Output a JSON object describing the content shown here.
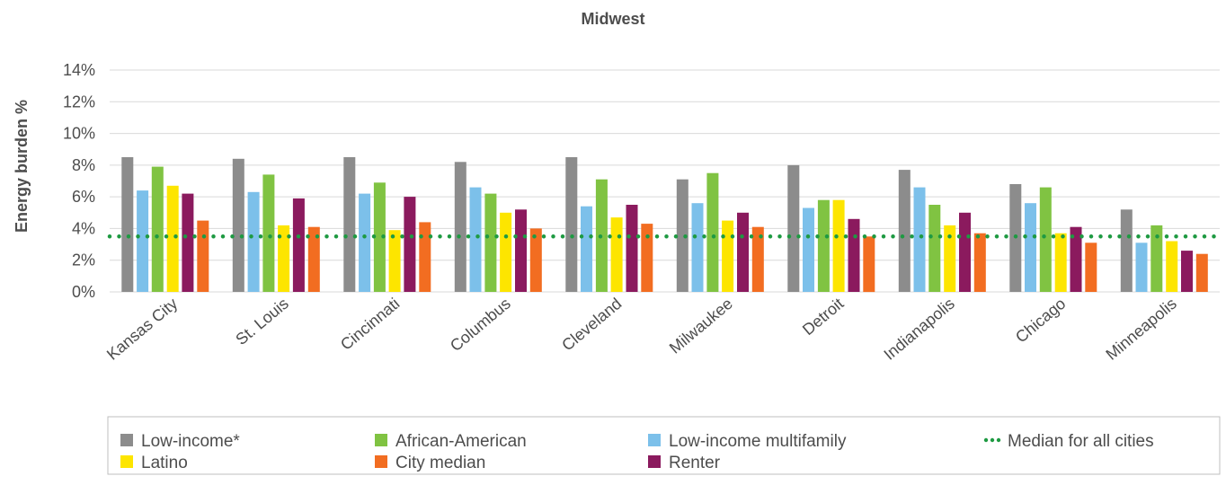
{
  "chart_data": {
    "type": "bar",
    "title": "Midwest",
    "xlabel": "",
    "ylabel": "Energy burden %",
    "ylim": [
      0,
      14
    ],
    "yticks": [
      "0%",
      "2%",
      "4%",
      "6%",
      "8%",
      "10%",
      "12%",
      "14%"
    ],
    "grid": true,
    "legend_position": "bottom",
    "categories": [
      "Kansas City",
      "St. Louis",
      "Cincinnati",
      "Columbus",
      "Cleveland",
      "Milwaukee",
      "Detroit",
      "Indianapolis",
      "Chicago",
      "Minneapolis"
    ],
    "series": [
      {
        "name": "Low-income*",
        "color": "#8c8c8c",
        "values": [
          8.5,
          8.4,
          8.5,
          8.2,
          8.5,
          7.1,
          8.0,
          7.7,
          6.8,
          5.2
        ]
      },
      {
        "name": "Low-income multifamily",
        "color": "#7cc0ea",
        "values": [
          6.4,
          6.3,
          6.2,
          6.6,
          5.4,
          5.6,
          5.3,
          6.6,
          5.6,
          3.1
        ]
      },
      {
        "name": "African-American",
        "color": "#80c342",
        "values": [
          7.9,
          7.4,
          6.9,
          6.2,
          7.1,
          7.5,
          5.8,
          5.5,
          6.6,
          4.2
        ]
      },
      {
        "name": "Latino",
        "color": "#fde500",
        "values": [
          6.7,
          4.2,
          3.9,
          5.0,
          4.7,
          4.5,
          5.8,
          4.2,
          3.7,
          3.2
        ]
      },
      {
        "name": "Renter",
        "color": "#8b1a5e",
        "values": [
          6.2,
          5.9,
          6.0,
          5.2,
          5.5,
          5.0,
          4.6,
          5.0,
          4.1,
          2.6
        ]
      },
      {
        "name": "City median",
        "color": "#f26d21",
        "values": [
          4.5,
          4.1,
          4.4,
          4.0,
          4.3,
          4.1,
          3.5,
          3.7,
          3.1,
          2.4
        ]
      }
    ],
    "reference_line": {
      "name": "Median for all cities",
      "value": 3.5,
      "color": "#1e9a42",
      "style": "dotted"
    },
    "legend": [
      {
        "name": "Low-income*",
        "color": "#8c8c8c",
        "kind": "box"
      },
      {
        "name": "African-American",
        "color": "#80c342",
        "kind": "box"
      },
      {
        "name": "Low-income multifamily",
        "color": "#7cc0ea",
        "kind": "box"
      },
      {
        "name": "Median for all cities",
        "color": "#1e9a42",
        "kind": "dots"
      },
      {
        "name": "Latino",
        "color": "#fde500",
        "kind": "box"
      },
      {
        "name": "City median",
        "color": "#f26d21",
        "kind": "box"
      },
      {
        "name": "Renter",
        "color": "#8b1a5e",
        "kind": "box"
      }
    ]
  }
}
